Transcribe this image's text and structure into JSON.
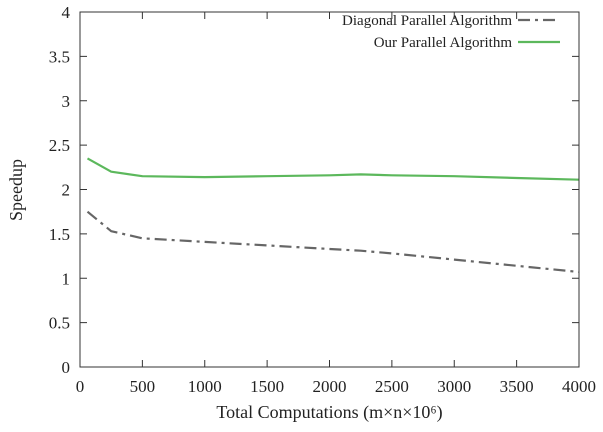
{
  "chart_data": {
    "type": "line",
    "title": "",
    "xlabel": "Total Computations (m×n×10⁶)",
    "ylabel": "Speedup",
    "xlim": [
      0,
      4000
    ],
    "ylim": [
      0,
      4
    ],
    "xticks": [
      0,
      500,
      1000,
      1500,
      2000,
      2500,
      3000,
      3500,
      4000
    ],
    "yticks": [
      0,
      0.5,
      1,
      1.5,
      2,
      2.5,
      3,
      3.5,
      4
    ],
    "xtick_labels": [
      "0",
      "500",
      "1000",
      "1500",
      "2000",
      "2500",
      "3000",
      "3500",
      "4000"
    ],
    "ytick_labels": [
      "0",
      "0.5",
      "1",
      "1.5",
      "2",
      "2.5",
      "3",
      "3.5",
      "4"
    ],
    "grid": false,
    "legend_position": "top-right",
    "series": [
      {
        "name": "Diagonal Parallel Algorithm",
        "color": "#666666",
        "style": "dash-dot",
        "x": [
          60,
          250,
          500,
          1000,
          1500,
          2000,
          2250,
          2500,
          3000,
          3500,
          4000
        ],
        "y": [
          1.75,
          1.53,
          1.45,
          1.41,
          1.37,
          1.33,
          1.31,
          1.28,
          1.21,
          1.14,
          1.07
        ]
      },
      {
        "name": "Our Parallel Algorithm",
        "color": "#5cb85c",
        "style": "solid",
        "x": [
          60,
          250,
          500,
          1000,
          1500,
          2000,
          2250,
          2500,
          3000,
          3500,
          4000
        ],
        "y": [
          2.35,
          2.2,
          2.15,
          2.14,
          2.15,
          2.16,
          2.17,
          2.16,
          2.15,
          2.13,
          2.11
        ]
      }
    ]
  }
}
